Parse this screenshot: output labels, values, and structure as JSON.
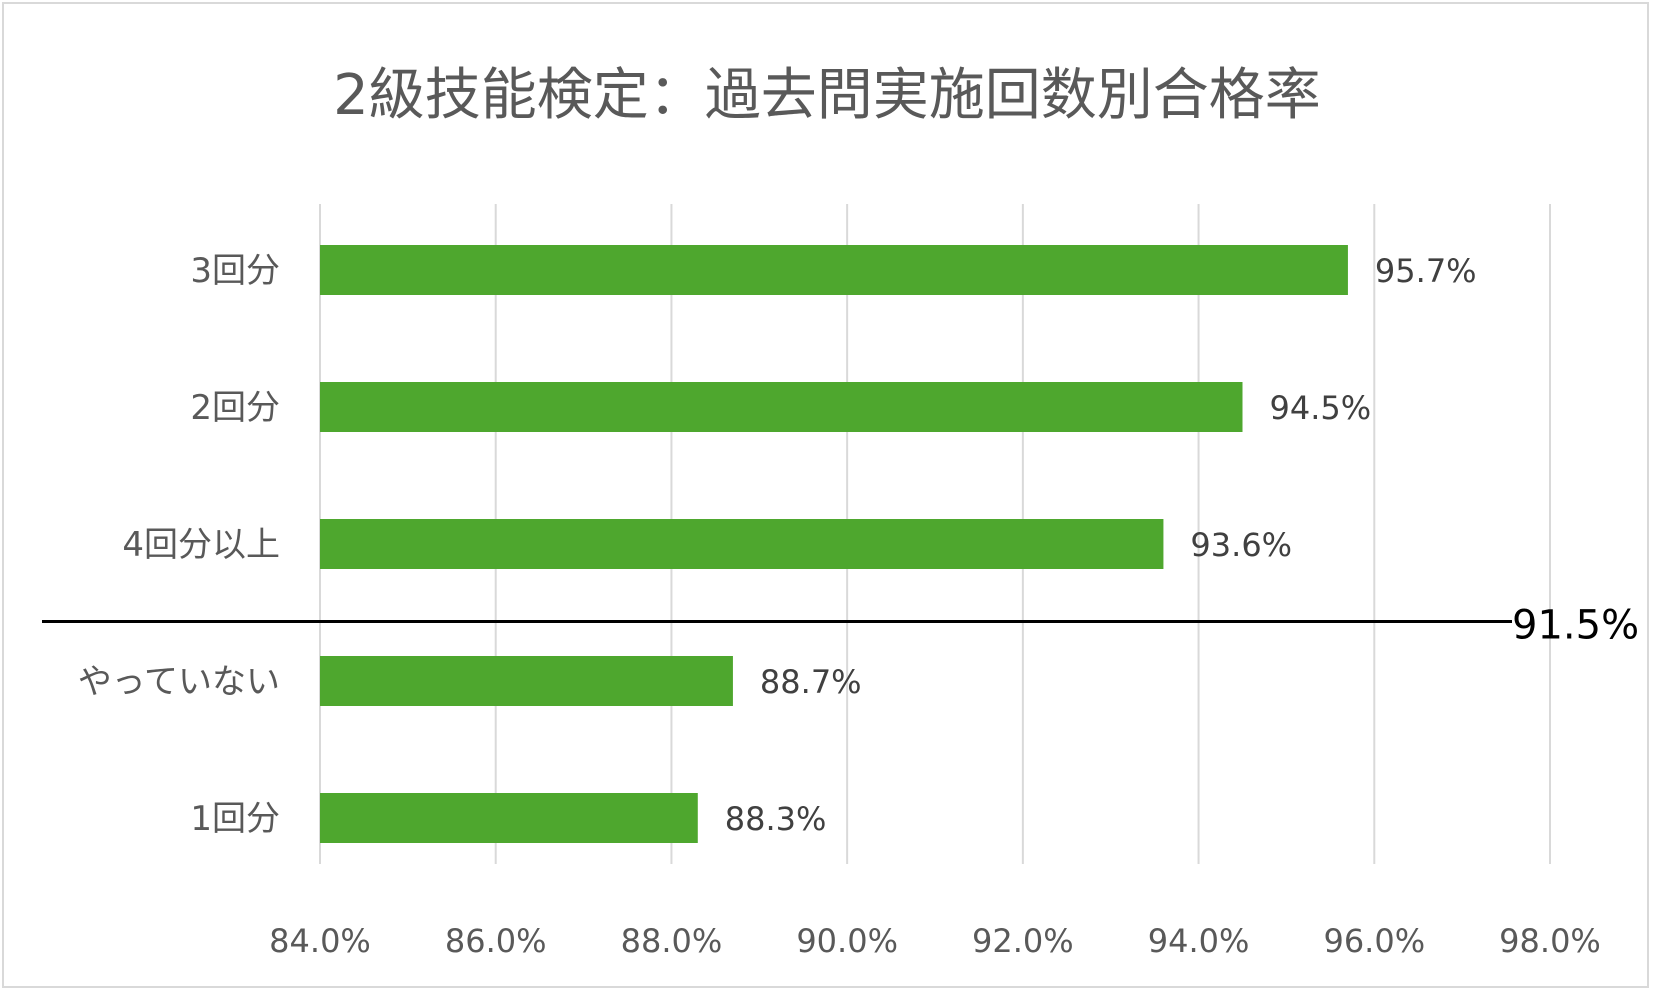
{
  "chart_data": {
    "type": "bar",
    "orientation": "horizontal",
    "title": "2級技能検定：過去問実施回数別合格率",
    "categories": [
      "3回分",
      "2回分",
      "4回分以上",
      "やっていない",
      "1回分"
    ],
    "values": [
      95.7,
      94.5,
      93.6,
      88.7,
      88.3
    ],
    "data_labels": [
      "95.7%",
      "94.5%",
      "93.6%",
      "88.7%",
      "88.3%"
    ],
    "xlim": [
      84.0,
      98.0
    ],
    "x_ticks": [
      84.0,
      86.0,
      88.0,
      90.0,
      92.0,
      94.0,
      96.0,
      98.0
    ],
    "x_tick_labels": [
      "84.0%",
      "86.0%",
      "88.0%",
      "90.0%",
      "92.0%",
      "94.0%",
      "96.0%",
      "98.0%"
    ],
    "grid": true,
    "bar_color": "#4ea72e",
    "reference_line": {
      "value": 91.5,
      "label": "91.5%",
      "color": "#000000"
    }
  }
}
